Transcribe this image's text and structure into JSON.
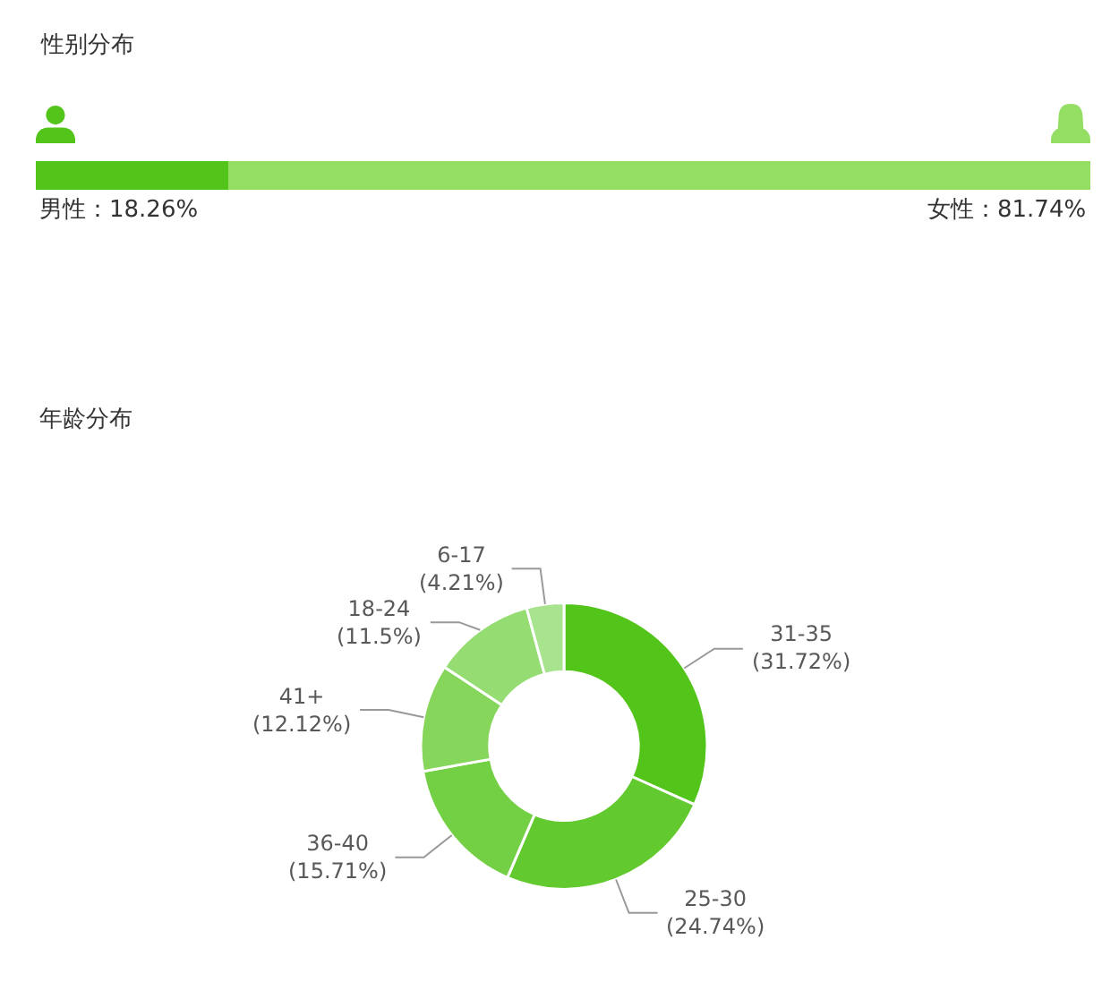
{
  "chart_data": [
    {
      "type": "bar",
      "title": "性别分布",
      "orientation": "horizontal",
      "stacked": true,
      "categories": [
        null
      ],
      "series": [
        {
          "color": "#52c41a",
          "values": [
            18.26
          ],
          "value_labels": [
            "男性：18.26%"
          ]
        },
        {
          "color": "#95de64",
          "values": [
            81.74
          ],
          "value_labels": [
            "女性：81.74%"
          ]
        }
      ],
      "tick_labels": false
    },
    {
      "type": "donut",
      "title": "年龄分布",
      "categories": [
        "31-35",
        "25-30",
        "36-40",
        "41+",
        "18-24",
        "6-17"
      ],
      "values": [
        31.72,
        24.74,
        15.71,
        12.12,
        11.5,
        4.21
      ],
      "value_labels": [
        "(31.72%)",
        "(24.74%)",
        "(15.71%)",
        "(12.12%)",
        "(11.5%)",
        "(4.21%)"
      ],
      "colors": [
        "#52c41a",
        "#62c92e",
        "#73cf44",
        "#85d65b",
        "#95dd73",
        "#a8e48e"
      ]
    }
  ]
}
